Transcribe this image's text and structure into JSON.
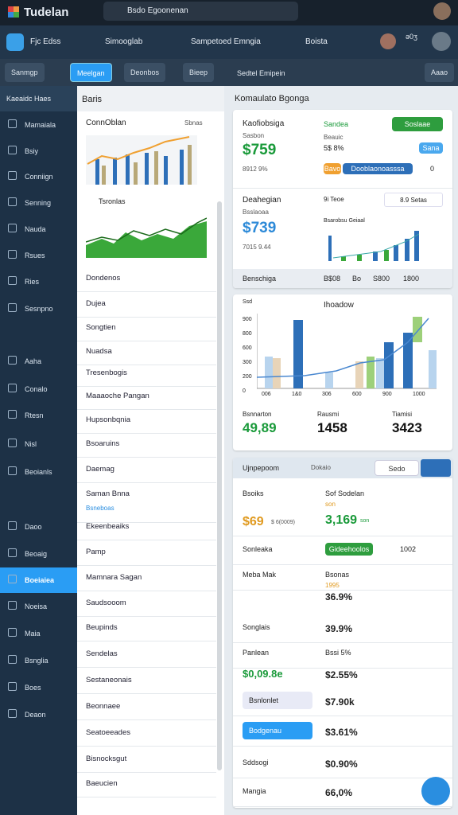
{
  "header": {
    "logo": "Tudelan",
    "search": "Bsdo Egoonenan"
  },
  "nav": {
    "title": "Fjc Edss",
    "items": [
      "Simooglab",
      "Sampetoed Emngia",
      "Boista"
    ],
    "user": "ǝ0ʒ"
  },
  "toolbar": {
    "chips": [
      "Sanmgp",
      "Meelgan",
      "Deonbos",
      "Bieep",
      "Sedtel Emipein",
      "Aaao"
    ]
  },
  "sidebar": {
    "title": "Kaeaidc Haes",
    "items": [
      "Mamaiala",
      "Bsiy",
      "Conniign",
      "Senning",
      "Nauda",
      "Rsues",
      "Ries",
      "Sesnpno",
      "Aaha",
      "Conalo",
      "Rtesn",
      "Nisl",
      "Beoianls",
      "Daoo",
      "Beoaig",
      "Boeiaiea",
      "Noeisa",
      "Maia",
      "Bsnglia",
      "Boes",
      "Deaon"
    ]
  },
  "list": {
    "title": "Baris",
    "card1": {
      "title": "ConnOblan",
      "tag": "Sbnas"
    },
    "card2": {
      "title": "Tsronlas"
    },
    "items": [
      "Dondenos",
      "Dujea",
      "Songtien",
      "Nuadsa",
      "Tresenbogis",
      "Maaaoche Pangan",
      "Hupsonbqnia",
      "Bsoaruins",
      "Daemag",
      "Saman Bnna",
      "Bsneboas",
      "Ekeenbeaiks",
      "Pamp",
      "Mamnara Sagan",
      "Saudsooom",
      "Beupinds",
      "Sendelas",
      "Sestaneonais",
      "Beonnaee",
      "Seatoeeades",
      "Bisnocksgut",
      "Baeucien"
    ]
  },
  "main": {
    "title": "Komaulato Bgonga",
    "card1": {
      "title": "Kaofiobsiga",
      "label": "Sasbon",
      "value": "$759",
      "sub": "8912 9%",
      "side_title": "Sandea",
      "button": "Soslaae",
      "side_label": "Beauic",
      "side_value": "5$ 8%",
      "tag": "Sana",
      "bar_label": "Bavo",
      "bar_text": "Dooblaonoasssa",
      "bar_count": "0",
      "title2": "Deahegian",
      "label2": "Bsslaoaa",
      "value2": "$739",
      "sub2": "7015 9.44",
      "chip1": "9i Teoe",
      "chip2": "8.9 Setas",
      "chart_title": "Bsarobsu Geiaal",
      "footer": [
        "Benschiga",
        "B$08",
        "Bo",
        "S800",
        "1800"
      ]
    },
    "card2": {
      "axis_title": "Ssd",
      "title": "Ihoadow",
      "yticks": [
        "900",
        "800",
        "600",
        "300",
        "200",
        "0"
      ],
      "xlabels": [
        "006",
        "1&0",
        "306",
        "600",
        "900",
        "1000"
      ],
      "stats": [
        {
          "label": "Bsnnarton",
          "value": "49,89"
        },
        {
          "label": "Rausmi",
          "value": "1458"
        },
        {
          "label": "Tiamisi",
          "value": "3423"
        }
      ]
    },
    "card3": {
      "title": "Ujnpepoom",
      "dropdown": "Dokaio",
      "button": "Sedo",
      "rows": [
        {
          "label": "Bsoiks",
          "value": "$69",
          "sub": "$ 6(0009)",
          "right_label": "Sof Sodelan",
          "right_value": "3,169",
          "right_sub": "son"
        },
        {
          "label": "Sonleaka",
          "button": "Gideehoolos",
          "right": "1002"
        },
        {
          "label": "Meba Mak",
          "right_label": "Bsonas",
          "right_sub": "1995",
          "right_value": "36.9%"
        },
        {
          "label": "Songlais",
          "right_value": "39.9%"
        },
        {
          "label": "Panlean",
          "right_label": "Bssi 5%",
          "value": "$0,09.8e",
          "right_value": "$2.55%"
        },
        {
          "label": "Bsnlonlet",
          "right_value": "$7.90k"
        },
        {
          "label": "Bodgenau",
          "right_value": "$3.61%"
        },
        {
          "label": "Sddsogi",
          "right_value": "$0.90%"
        },
        {
          "label": "Mangia",
          "right_value": "66,0%"
        }
      ]
    }
  }
}
